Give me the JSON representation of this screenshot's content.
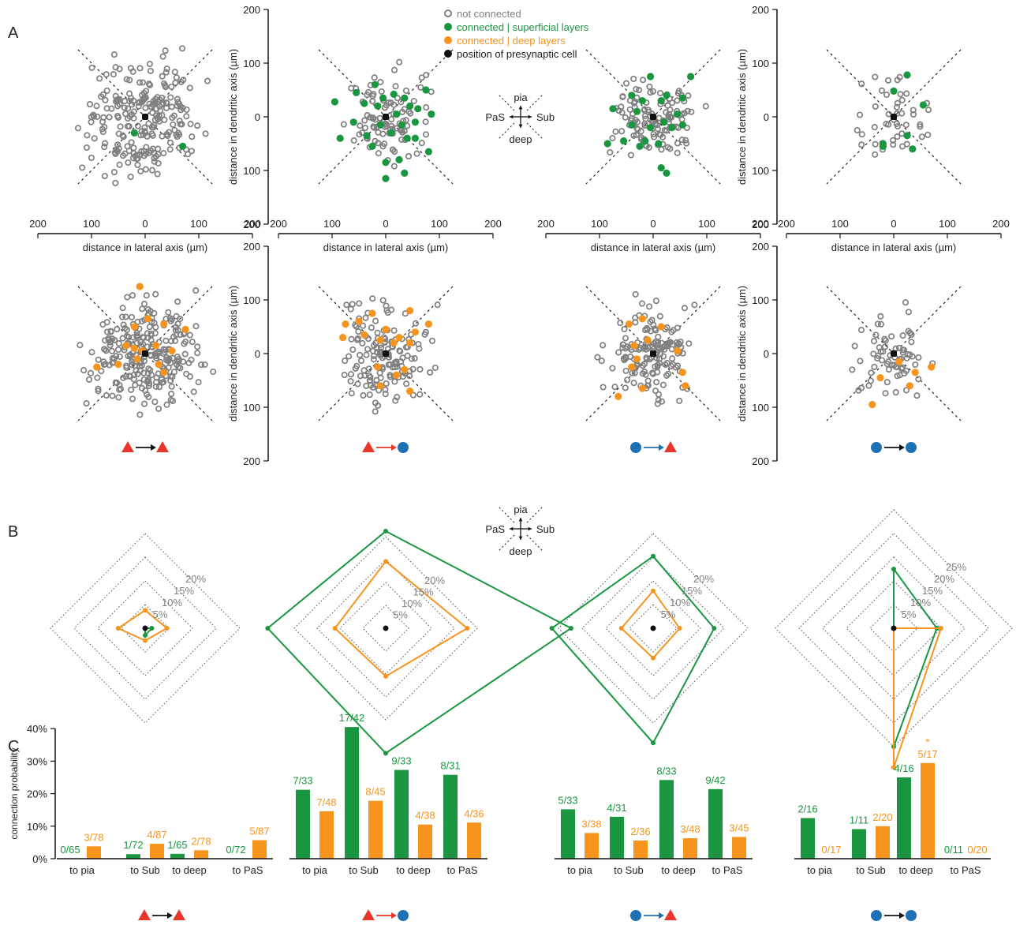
{
  "panel_labels": [
    "A",
    "B",
    "C"
  ],
  "legend": {
    "items": [
      {
        "label": "not connected",
        "color": "#808080",
        "style": "ring"
      },
      {
        "label": "connected | superficial layers",
        "color": "#1a9641",
        "style": "dot"
      },
      {
        "label": "connected | deep layers",
        "color": "#f7941d",
        "style": "dot"
      },
      {
        "label": "position of presynaptic cell",
        "color": "#111111",
        "style": "dot"
      }
    ]
  },
  "compass": {
    "up": "pia",
    "down": "deep",
    "left": "PaS",
    "right": "Sub"
  },
  "axes": {
    "xlabel": "distance in lateral axis (µm)",
    "ylabel": "distance in dendritic axis (µm)",
    "x_ticks": [
      "200",
      "100",
      "0",
      "100",
      "200"
    ],
    "y_ticks": [
      "200",
      "100",
      "0",
      "100",
      "200"
    ]
  },
  "colors": {
    "grey": "#808080",
    "green": "#1a9641",
    "orange": "#f7941d",
    "red": "#e8372a",
    "blue": "#1f6fb5",
    "black": "#111111"
  },
  "connection_types": [
    {
      "pre": "triangle",
      "pre_color": "red",
      "post": "triangle",
      "post_color": "red",
      "arrow": "black"
    },
    {
      "pre": "triangle",
      "pre_color": "red",
      "post": "circle",
      "post_color": "blue",
      "arrow": "red"
    },
    {
      "pre": "circle",
      "pre_color": "blue",
      "post": "triangle",
      "post_color": "red",
      "arrow": "blue"
    },
    {
      "pre": "circle",
      "pre_color": "blue",
      "post": "circle",
      "post_color": "blue",
      "arrow": "black"
    }
  ],
  "radar_rings": [
    [
      "5%",
      "10%",
      "15%",
      "20%"
    ],
    [
      "5%",
      "10%",
      "15%",
      "20%"
    ],
    [
      "5%",
      "10%",
      "15%",
      "20%"
    ],
    [
      "5%",
      "10%",
      "15%",
      "20%",
      "25%"
    ]
  ],
  "chart_data": [
    {
      "type": "scatter",
      "panel": "A",
      "row": "superficial",
      "note_points": "points are approximate; only connected cells listed",
      "connected": [
        [
          -20,
          -30,
          "green"
        ],
        [
          70,
          -55,
          "green"
        ]
      ],
      "not_connected_count_estimate": 230
    },
    {
      "type": "scatter",
      "panel": "A",
      "row": "superficial",
      "connected": [
        [
          -95,
          28
        ],
        [
          -55,
          45
        ],
        [
          -40,
          25
        ],
        [
          -20,
          60
        ],
        [
          -5,
          35
        ],
        [
          15,
          42
        ],
        [
          20,
          5
        ],
        [
          35,
          35
        ],
        [
          45,
          20
        ],
        [
          55,
          -10
        ],
        [
          75,
          50
        ],
        [
          85,
          5
        ],
        [
          -85,
          -40
        ],
        [
          -35,
          -35
        ],
        [
          -10,
          -15
        ],
        [
          10,
          -30
        ],
        [
          30,
          -15
        ],
        [
          40,
          -40
        ],
        [
          55,
          -40
        ],
        [
          80,
          -65
        ],
        [
          -60,
          -10
        ],
        [
          -25,
          -55
        ],
        [
          0,
          -85
        ],
        [
          25,
          -80
        ],
        [
          35,
          -105
        ],
        [
          0,
          -115
        ],
        [
          -15,
          20
        ],
        [
          60,
          15
        ]
      ]
    },
    {
      "type": "scatter",
      "panel": "A",
      "row": "superficial",
      "connected": [
        [
          -40,
          40
        ],
        [
          -20,
          30
        ],
        [
          -5,
          75
        ],
        [
          15,
          30
        ],
        [
          25,
          40
        ],
        [
          55,
          35
        ],
        [
          70,
          75
        ],
        [
          -75,
          15
        ],
        [
          -30,
          10
        ],
        [
          -5,
          -20
        ],
        [
          20,
          -10
        ],
        [
          35,
          -20
        ],
        [
          55,
          -15
        ],
        [
          -55,
          -45
        ],
        [
          -25,
          -55
        ],
        [
          -15,
          -45
        ],
        [
          10,
          -50
        ],
        [
          15,
          -95
        ],
        [
          25,
          -105
        ],
        [
          -85,
          -50
        ],
        [
          -40,
          -15
        ],
        [
          45,
          5
        ]
      ]
    },
    {
      "type": "scatter",
      "panel": "A",
      "row": "superficial",
      "connected": [
        [
          0,
          48
        ],
        [
          25,
          78
        ],
        [
          55,
          22
        ],
        [
          25,
          -35
        ],
        [
          35,
          -60
        ],
        [
          -20,
          -50
        ],
        [
          -20,
          -55
        ]
      ]
    },
    {
      "type": "scatter",
      "panel": "A",
      "row": "deep",
      "connected": [
        [
          -10,
          125
        ],
        [
          -20,
          50
        ],
        [
          5,
          65
        ],
        [
          35,
          55
        ],
        [
          -35,
          15
        ],
        [
          -20,
          10
        ],
        [
          -5,
          5
        ],
        [
          20,
          15
        ],
        [
          50,
          5
        ],
        [
          75,
          45
        ],
        [
          -90,
          -25
        ],
        [
          -50,
          -20
        ],
        [
          -15,
          -10
        ],
        [
          25,
          -20
        ],
        [
          35,
          -35
        ]
      ]
    },
    {
      "type": "scatter",
      "panel": "A",
      "row": "deep",
      "connected": [
        [
          -75,
          55
        ],
        [
          -50,
          60
        ],
        [
          -25,
          75
        ],
        [
          0,
          45
        ],
        [
          25,
          30
        ],
        [
          45,
          80
        ],
        [
          80,
          55
        ],
        [
          -80,
          30
        ],
        [
          -40,
          35
        ],
        [
          -10,
          25
        ],
        [
          15,
          20
        ],
        [
          45,
          20
        ],
        [
          55,
          40
        ],
        [
          -15,
          -25
        ],
        [
          20,
          -40
        ],
        [
          -10,
          -60
        ],
        [
          35,
          -30
        ],
        [
          45,
          -70
        ]
      ]
    },
    {
      "type": "scatter",
      "panel": "A",
      "row": "deep",
      "connected": [
        [
          -45,
          55
        ],
        [
          -20,
          65
        ],
        [
          15,
          50
        ],
        [
          -35,
          15
        ],
        [
          -10,
          25
        ],
        [
          -40,
          -25
        ],
        [
          60,
          -60
        ],
        [
          55,
          -35
        ],
        [
          -20,
          -65
        ],
        [
          -65,
          -80
        ],
        [
          -30,
          -10
        ],
        [
          45,
          5
        ]
      ]
    },
    {
      "type": "scatter",
      "panel": "A",
      "row": "deep",
      "connected": [
        [
          10,
          -15
        ],
        [
          40,
          -35
        ],
        [
          70,
          -25
        ],
        [
          -25,
          -45
        ],
        [
          30,
          -60
        ],
        [
          -40,
          -95
        ]
      ]
    },
    {
      "type": "radar",
      "panel": "B",
      "axes": [
        "pia",
        "Sub",
        "deep",
        "PaS"
      ],
      "rmax": 20,
      "series": [
        {
          "name": "superficial",
          "color": "green",
          "values": [
            0,
            1.4,
            1.5,
            0
          ]
        },
        {
          "name": "deep",
          "color": "orange",
          "values": [
            3.8,
            4.6,
            2.6,
            5.7
          ]
        }
      ]
    },
    {
      "type": "radar",
      "panel": "B",
      "axes": [
        "pia",
        "Sub",
        "deep",
        "PaS"
      ],
      "rmax": 20,
      "series": [
        {
          "name": "superficial",
          "color": "green",
          "values": [
            21.2,
            40.5,
            27.3,
            25.8
          ]
        },
        {
          "name": "deep",
          "color": "orange",
          "values": [
            14.6,
            17.8,
            10.5,
            11.1
          ]
        }
      ]
    },
    {
      "type": "radar",
      "panel": "B",
      "axes": [
        "pia",
        "Sub",
        "deep",
        "PaS"
      ],
      "rmax": 20,
      "series": [
        {
          "name": "superficial",
          "color": "green",
          "values": [
            15.2,
            12.9,
            24.2,
            21.4
          ]
        },
        {
          "name": "deep",
          "color": "orange",
          "values": [
            7.9,
            5.6,
            6.3,
            6.7
          ]
        }
      ]
    },
    {
      "type": "radar",
      "panel": "B",
      "axes": [
        "pia",
        "Sub",
        "deep",
        "PaS"
      ],
      "rmax": 25,
      "series": [
        {
          "name": "superficial",
          "color": "green",
          "values": [
            12.5,
            9.1,
            25.0,
            0
          ]
        },
        {
          "name": "deep",
          "color": "orange",
          "values": [
            0,
            10.0,
            29.4,
            0
          ]
        }
      ]
    },
    {
      "type": "bar",
      "panel": "C",
      "ylabel": "connection probability",
      "yticks": [
        "0%",
        "10%",
        "20%",
        "30%",
        "40%"
      ],
      "ylim": [
        0,
        40
      ],
      "categories": [
        "to pia",
        "to Sub",
        "to deep",
        "to PaS"
      ],
      "series": [
        {
          "name": "superficial",
          "color": "green",
          "values": [
            0,
            1.4,
            1.5,
            0
          ],
          "labels": [
            "0/65",
            "1/72",
            "1/65",
            "0/72"
          ]
        },
        {
          "name": "deep",
          "color": "orange",
          "values": [
            3.8,
            4.6,
            2.6,
            5.7
          ],
          "labels": [
            "3/78",
            "4/87",
            "2/78",
            "5/87"
          ]
        }
      ]
    },
    {
      "type": "bar",
      "panel": "C",
      "categories": [
        "to pia",
        "to Sub",
        "to deep",
        "to PaS"
      ],
      "series": [
        {
          "name": "superficial",
          "color": "green",
          "values": [
            21.2,
            40.5,
            27.3,
            25.8
          ],
          "labels": [
            "7/33",
            "17/42",
            "9/33",
            "8/31"
          ]
        },
        {
          "name": "deep",
          "color": "orange",
          "values": [
            14.6,
            17.8,
            10.5,
            11.1
          ],
          "labels": [
            "7/48",
            "8/45",
            "4/38",
            "4/36"
          ]
        }
      ]
    },
    {
      "type": "bar",
      "panel": "C",
      "categories": [
        "to pia",
        "to Sub",
        "to deep",
        "to PaS"
      ],
      "series": [
        {
          "name": "superficial",
          "color": "green",
          "values": [
            15.2,
            12.9,
            24.2,
            21.4
          ],
          "labels": [
            "5/33",
            "4/31",
            "8/33",
            "9/42"
          ]
        },
        {
          "name": "deep",
          "color": "orange",
          "values": [
            7.9,
            5.6,
            6.3,
            6.7
          ],
          "labels": [
            "3/38",
            "2/36",
            "3/48",
            "3/45"
          ]
        }
      ]
    },
    {
      "type": "bar",
      "panel": "C",
      "categories": [
        "to pia",
        "to Sub",
        "to deep",
        "to PaS"
      ],
      "series": [
        {
          "name": "superficial",
          "color": "green",
          "values": [
            12.5,
            9.1,
            25.0,
            0
          ],
          "labels": [
            "2/16",
            "1/11",
            "4/16",
            "0/11"
          ]
        },
        {
          "name": "deep",
          "color": "orange",
          "values": [
            0,
            10.0,
            29.4,
            0
          ],
          "labels": [
            "0/17",
            "2/20",
            "5/17",
            "0/20"
          ]
        }
      ],
      "annotation": "*"
    }
  ]
}
